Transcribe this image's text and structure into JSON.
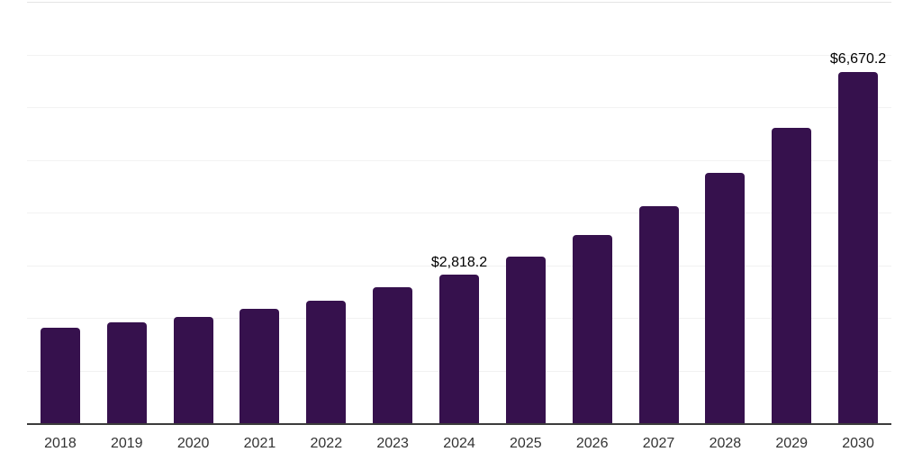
{
  "chart_data": {
    "type": "bar",
    "title": "",
    "xlabel": "",
    "ylabel": "",
    "categories": [
      "2018",
      "2019",
      "2020",
      "2021",
      "2022",
      "2023",
      "2024",
      "2025",
      "2026",
      "2027",
      "2028",
      "2029",
      "2030"
    ],
    "values": [
      1807,
      1913,
      2021,
      2169,
      2322,
      2578,
      2818.2,
      3163,
      3577,
      4113,
      4754,
      5606,
      6670.2
    ],
    "value_labels": {
      "6": "$2,818.2",
      "12": "$6,670.2"
    },
    "ylim": [
      0,
      8000
    ],
    "gridline_step": 1000,
    "grid": true,
    "legend": false,
    "y_tick_labels_visible": false,
    "bar_color": "#36114D",
    "gridline_color": "#f2f2f2",
    "plot_top_line_color": "#e4e4e4",
    "axis_line_color": "#3c3c3c",
    "tick_label_color": "#333333",
    "value_label_color": "#000000",
    "background_color": "#ffffff"
  }
}
